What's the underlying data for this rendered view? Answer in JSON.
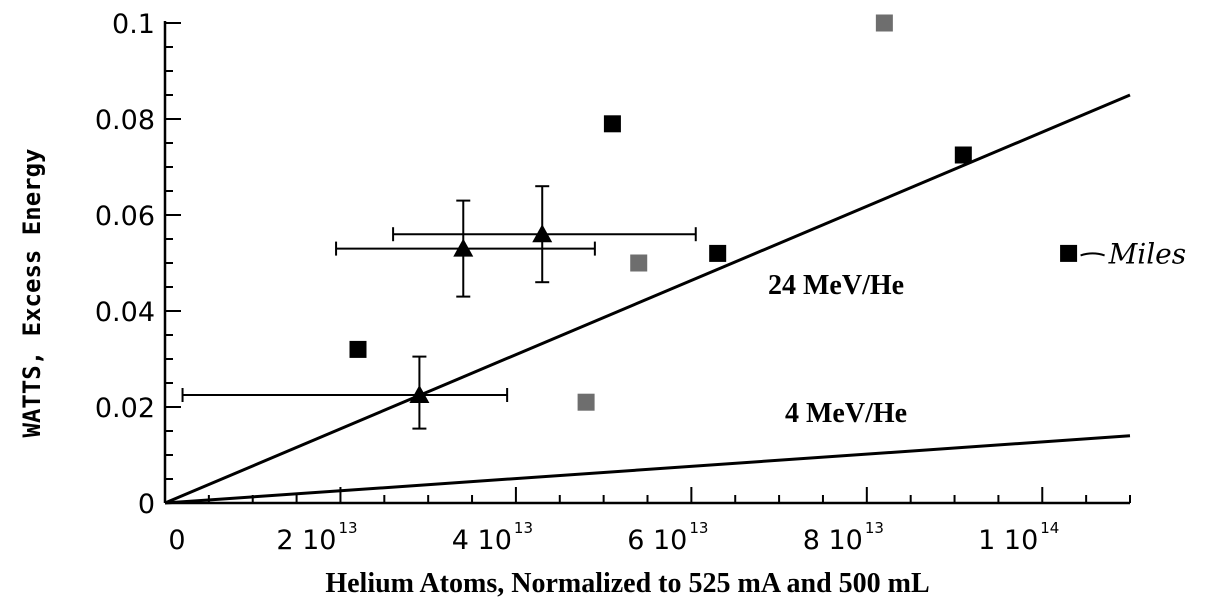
{
  "chart_data": {
    "type": "scatter",
    "xlabel": "Helium Atoms, Normalized to 525 mA and 500 mL",
    "ylabel": "WATTS, Excess Energy",
    "xlim": [
      0,
      110000000000000.0
    ],
    "ylim": [
      0,
      0.1
    ],
    "x_ticks": [
      {
        "value": 0,
        "label": "0",
        "exp": ""
      },
      {
        "value": 20000000000000.0,
        "label": "2 10",
        "exp": "13"
      },
      {
        "value": 40000000000000.0,
        "label": "4 10",
        "exp": "13"
      },
      {
        "value": 60000000000000.0,
        "label": "6 10",
        "exp": "13"
      },
      {
        "value": 80000000000000.0,
        "label": "8 10",
        "exp": "13"
      },
      {
        "value": 100000000000000.0,
        "label": "1 10",
        "exp": "14"
      }
    ],
    "y_ticks": [
      {
        "value": 0,
        "label": "0"
      },
      {
        "value": 0.02,
        "label": "0.02"
      },
      {
        "value": 0.04,
        "label": "0.04"
      },
      {
        "value": 0.06,
        "label": "0.06"
      },
      {
        "value": 0.08,
        "label": "0.08"
      },
      {
        "value": 0.1,
        "label": "0.1"
      }
    ],
    "series": [
      {
        "marker": "square",
        "color": "#000000",
        "points": [
          {
            "x": 22000000000000.0,
            "y": 0.032
          },
          {
            "x": 51000000000000.0,
            "y": 0.079
          },
          {
            "x": 63000000000000.0,
            "y": 0.052
          },
          {
            "x": 91000000000000.0,
            "y": 0.0725
          },
          {
            "x": 103000000000000.0,
            "y": 0.052
          }
        ]
      },
      {
        "marker": "square",
        "color": "#6e6e6e",
        "points": [
          {
            "x": 48000000000000.0,
            "y": 0.021
          },
          {
            "x": 54000000000000.0,
            "y": 0.05
          },
          {
            "x": 82000000000000.0,
            "y": 0.1
          }
        ]
      },
      {
        "marker": "triangle",
        "color": "#000000",
        "points": [
          {
            "x": 29000000000000.0,
            "y": 0.0225,
            "xerr": [
              2000000000000.0,
              39000000000000.0
            ],
            "yerr": [
              0.0155,
              0.0305
            ]
          },
          {
            "x": 34000000000000.0,
            "y": 0.053,
            "xerr": [
              19500000000000.0,
              49000000000000.0
            ],
            "yerr": [
              0.043,
              0.063
            ]
          },
          {
            "x": 43000000000000.0,
            "y": 0.056,
            "xerr": [
              26000000000000.0,
              60500000000000.0
            ],
            "yerr": [
              0.046,
              0.066
            ]
          }
        ]
      }
    ],
    "reference_lines": [
      {
        "label": "24 MeV/He",
        "x": [
          0,
          110000000000000.0
        ],
        "y": [
          0,
          0.085
        ]
      },
      {
        "label": "4 MeV/He",
        "x": [
          0,
          110000000000000.0
        ],
        "y": [
          0,
          0.014
        ]
      }
    ],
    "annotations": [
      {
        "text": "Miles",
        "points_to": {
          "x": 103000000000000.0,
          "y": 0.052
        }
      }
    ]
  }
}
